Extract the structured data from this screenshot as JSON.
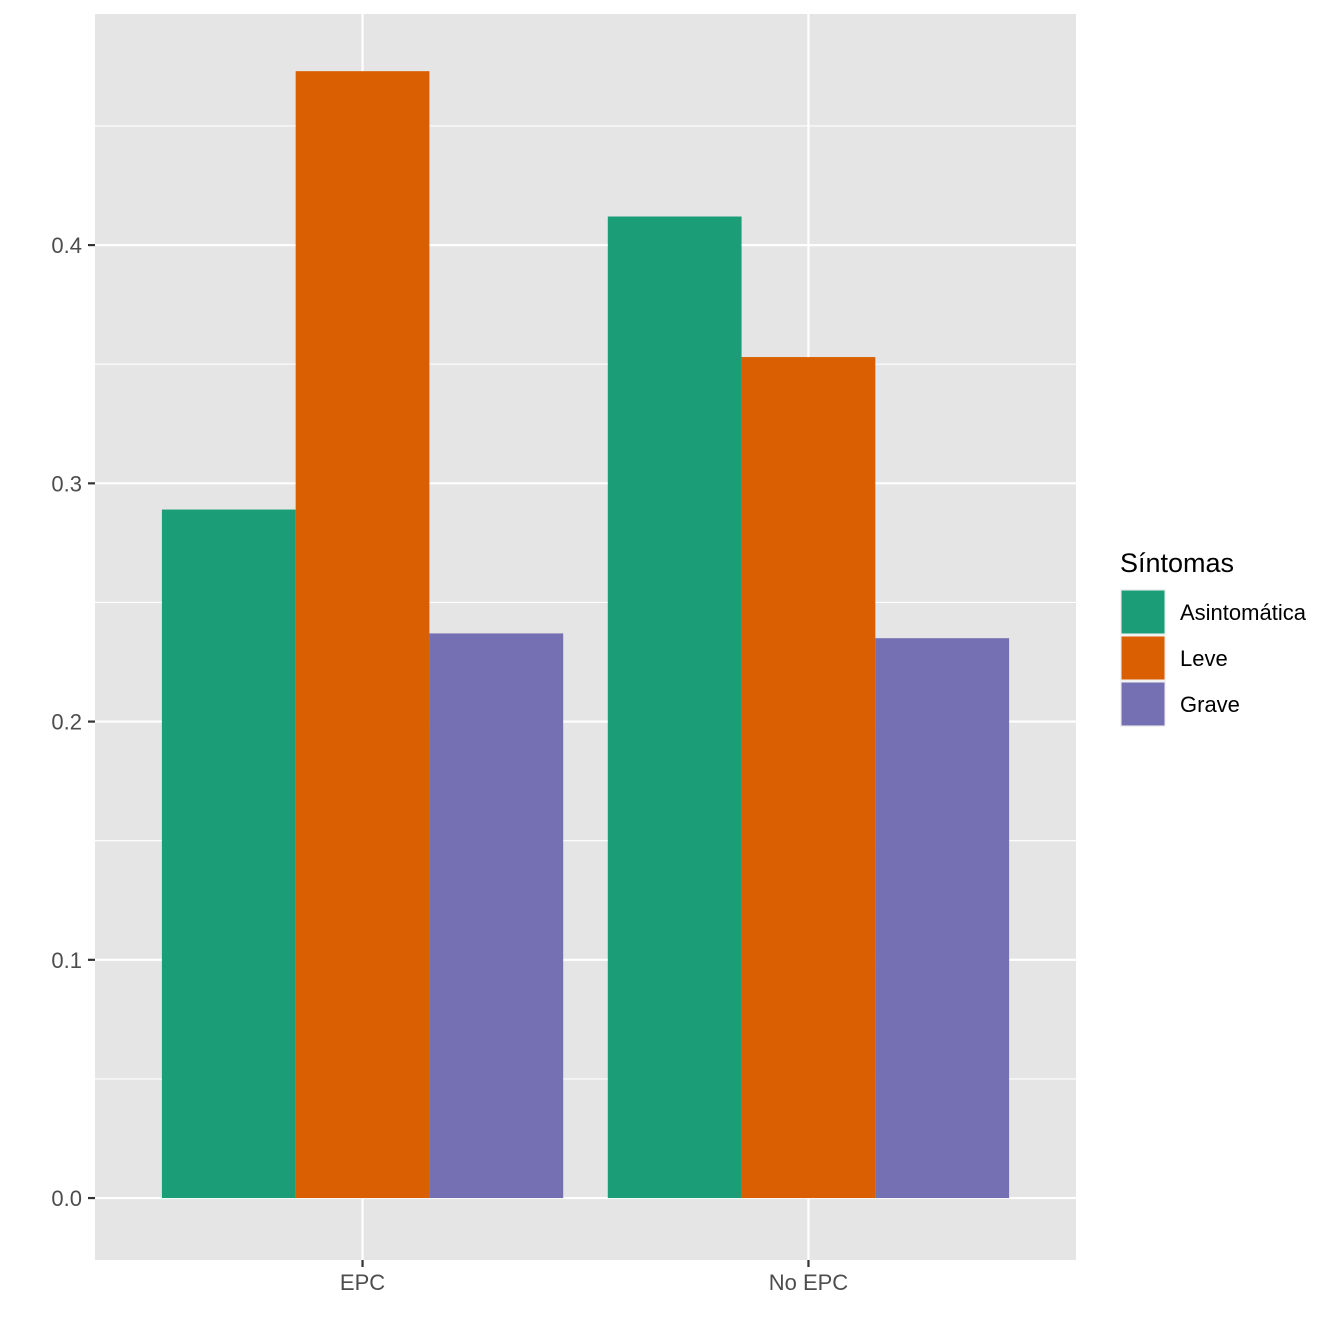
{
  "chart_data": {
    "type": "bar",
    "categories": [
      "EPC",
      "No EPC"
    ],
    "series": [
      {
        "name": "Asintomática",
        "color": "#1b9e77",
        "values": [
          0.289,
          0.412
        ]
      },
      {
        "name": "Leve",
        "color": "#d95f02",
        "values": [
          0.473,
          0.353
        ]
      },
      {
        "name": "Grave",
        "color": "#7570b3",
        "values": [
          0.237,
          0.235
        ]
      }
    ],
    "title": "",
    "xlabel": "",
    "ylabel": "",
    "ylim": [
      -0.026,
      0.497
    ],
    "yticks": [
      0.0,
      0.1,
      0.2,
      0.3,
      0.4
    ],
    "ytick_labels": [
      "0.0",
      "0.1",
      "0.2",
      "0.3",
      "0.4"
    ],
    "grid": true,
    "legend": {
      "title": "Síntomas",
      "position": "right"
    },
    "panel_background": "#e5e5e5",
    "grid_color": "#ffffff"
  }
}
